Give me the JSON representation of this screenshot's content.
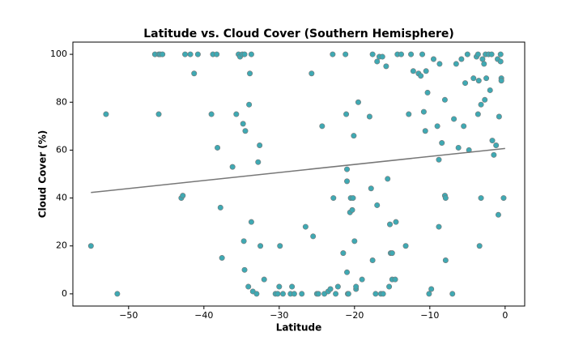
{
  "chart_data": {
    "type": "scatter",
    "title": "Latitude vs. Cloud Cover (Southern Hemisphere)",
    "x_label": "Latitude",
    "y_label": "Cloud Cover (%)",
    "color": "#3fa9b3",
    "edge_color": "#777777",
    "x": [
      -55,
      -53,
      -51.5,
      -46.5,
      -46,
      -45.8,
      -45.5,
      -46,
      -43,
      -42.8,
      -42.5,
      -41.8,
      -41.3,
      -40.8,
      -39,
      -38.8,
      -38.3,
      -38.2,
      -37.8,
      -37.6,
      -36.2,
      -35.7,
      -35.4,
      -35.2,
      -34.9,
      -34.6,
      -34.8,
      -34.7,
      -34.6,
      -34.5,
      -34.1,
      -34,
      -33.9,
      -33.7,
      -33.7,
      -33.5,
      -33,
      -32.8,
      -32.6,
      -32.5,
      -32,
      -30.5,
      -30.2,
      -30,
      -29.9,
      -29.5,
      -28.5,
      -28.3,
      -28,
      -27,
      -26.5,
      -25.7,
      -25.5,
      -25,
      -24.8,
      -24.3,
      -24,
      -23.5,
      -23.2,
      -22.9,
      -22.8,
      -22.5,
      -22.2,
      -21.5,
      -21.2,
      -21.1,
      -21,
      -21,
      -21,
      -20.9,
      -20.8,
      -20.6,
      -20.5,
      -20.3,
      -20.2,
      -20.1,
      -20,
      -19.8,
      -19.8,
      -19.5,
      -19,
      -18,
      -17.8,
      -17.6,
      -17.6,
      -17.2,
      -17,
      -17,
      -16.7,
      -16.3,
      -16.5,
      -16.2,
      -15.8,
      -15.6,
      -15.4,
      -15.3,
      -15.2,
      -15,
      -15,
      -14.6,
      -14.5,
      -14.3,
      -13.8,
      -13.2,
      -12.8,
      -12.5,
      -12.2,
      -11.5,
      -11.2,
      -11,
      -10.8,
      -10.6,
      -10.5,
      -10.3,
      -10.1,
      -9.8,
      -9.5,
      -9,
      -8.8,
      -8.8,
      -8.7,
      -8.4,
      -8,
      -8,
      -7.9,
      -7.9,
      -7,
      -6.8,
      -6.5,
      -6.2,
      -5.8,
      -5.5,
      -5.3,
      -5,
      -4.8,
      -4.2,
      -3.8,
      -3.6,
      -3.6,
      -3.5,
      -3.4,
      -3.2,
      -3.2,
      -3,
      -2.8,
      -2.7,
      -2.6,
      -2.5,
      -2.2,
      -2,
      -1.8,
      -1.7,
      -1.5,
      -1.2,
      -1,
      -0.9,
      -0.8,
      -0.6,
      -0.6,
      -0.5,
      -0.5,
      -0.2
    ],
    "values": [
      20,
      75,
      0,
      100,
      100,
      100,
      100,
      75,
      40,
      41,
      100,
      100,
      92,
      100,
      75,
      100,
      100,
      61,
      36,
      15,
      53,
      75,
      100,
      99,
      100,
      100,
      71,
      22,
      10,
      68,
      3,
      79,
      92,
      100,
      30,
      1,
      0,
      55,
      62,
      20,
      6,
      0,
      0,
      3,
      20,
      0,
      0,
      3,
      0,
      0,
      28,
      92,
      24,
      0,
      0,
      70,
      0,
      1,
      2,
      100,
      40,
      0,
      3,
      17,
      100,
      75,
      52,
      47,
      9,
      0,
      0,
      34,
      40,
      35,
      40,
      66,
      22,
      2,
      3,
      80,
      6,
      74,
      44,
      14,
      100,
      0,
      37,
      97,
      99,
      99,
      0,
      0,
      95,
      48,
      3,
      29,
      17,
      17,
      6,
      6,
      30,
      100,
      100,
      20,
      75,
      100,
      93,
      92,
      91,
      100,
      76,
      68,
      93,
      84,
      0,
      2,
      98,
      70,
      28,
      56,
      96,
      63,
      81,
      41,
      40,
      14,
      0,
      73,
      96,
      61,
      98,
      70,
      88,
      100,
      60,
      90,
      99,
      100,
      75,
      89,
      20,
      79,
      40,
      98,
      96,
      81,
      100,
      90,
      100,
      85,
      100,
      64,
      58,
      62,
      98,
      33,
      74,
      100,
      97,
      90,
      89,
      40
    ],
    "trend_line": {
      "x": [
        -55,
        0
      ],
      "values": [
        42.3,
        60.7
      ],
      "color": "#777777"
    },
    "xlim": [
      -57.4,
      2.6
    ],
    "ylim": [
      -5.1,
      105.1
    ],
    "xticks": [
      {
        "value": -50,
        "label": "−50"
      },
      {
        "value": -40,
        "label": "−40"
      },
      {
        "value": -30,
        "label": "−30"
      },
      {
        "value": -20,
        "label": "−20"
      },
      {
        "value": -10,
        "label": "−10"
      },
      0
    ],
    "yticks": [
      0,
      20,
      40,
      60,
      80,
      100
    ]
  }
}
